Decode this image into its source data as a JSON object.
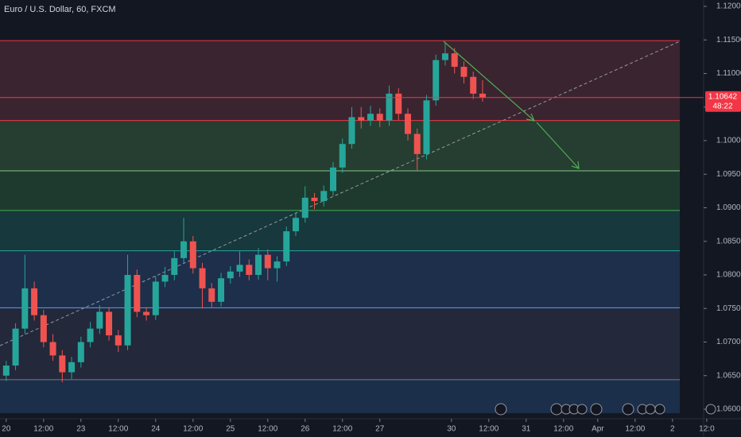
{
  "chart_data": {
    "type": "candlestick",
    "title": "Euro / U.S. Dollar, 60, FXCM",
    "x": [
      0,
      3,
      6,
      9,
      12,
      15,
      18,
      21,
      24,
      27,
      30,
      33,
      36,
      39,
      42,
      45,
      48,
      51,
      54,
      57,
      60,
      63,
      66,
      69,
      72,
      75,
      78,
      81,
      84,
      87,
      90,
      93,
      96,
      99,
      102,
      105,
      108,
      111,
      114,
      117,
      120,
      123,
      126,
      129,
      132,
      135,
      138,
      141,
      144,
      147,
      150,
      153
    ],
    "open": [
      1.065,
      1.0665,
      1.072,
      1.078,
      1.074,
      1.07,
      1.068,
      1.0655,
      1.067,
      1.07,
      1.072,
      1.0745,
      1.071,
      1.0695,
      1.08,
      1.0745,
      1.074,
      1.079,
      1.08,
      1.0825,
      1.085,
      1.081,
      1.078,
      1.076,
      1.0795,
      1.0805,
      1.0815,
      1.08,
      1.083,
      1.081,
      1.082,
      1.0865,
      1.0885,
      1.0915,
      1.091,
      1.0925,
      1.096,
      1.0995,
      1.1035,
      1.103,
      1.104,
      1.103,
      1.107,
      1.104,
      1.101,
      1.098,
      1.106,
      1.112,
      1.113,
      1.111,
      1.1095,
      1.107
    ],
    "high": [
      1.0672,
      1.0728,
      1.083,
      1.079,
      1.0748,
      1.0712,
      1.0688,
      1.0678,
      1.0708,
      1.073,
      1.0755,
      1.0752,
      1.0718,
      1.083,
      1.0808,
      1.0752,
      1.0798,
      1.0812,
      1.0835,
      1.0885,
      1.0858,
      1.0818,
      1.0788,
      1.0803,
      1.0813,
      1.0835,
      1.0823,
      1.084,
      1.0838,
      1.0828,
      1.0872,
      1.0893,
      1.0932,
      1.0922,
      1.0933,
      1.0968,
      1.1003,
      1.105,
      1.105,
      1.1052,
      1.1048,
      1.1082,
      1.1078,
      1.1048,
      1.1018,
      1.1068,
      1.1128,
      1.1145,
      1.1138,
      1.1118,
      1.1103,
      1.109
    ],
    "low": [
      1.0642,
      1.0658,
      1.0712,
      1.0732,
      1.0692,
      1.0672,
      1.064,
      1.0645,
      1.0662,
      1.0692,
      1.0712,
      1.0702,
      1.0685,
      1.0688,
      1.0737,
      1.0732,
      1.0733,
      1.0782,
      1.0792,
      1.0818,
      1.0802,
      1.075,
      1.0752,
      1.0753,
      1.0787,
      1.0797,
      1.0792,
      1.0793,
      1.0792,
      1.079,
      1.0813,
      1.0858,
      1.0878,
      1.0898,
      1.0902,
      1.0918,
      1.0952,
      1.0988,
      1.1018,
      1.1022,
      1.102,
      1.1022,
      1.103,
      1.1,
      1.0955,
      1.0972,
      1.1052,
      1.1112,
      1.11,
      1.1085,
      1.1062,
      1.1058
    ],
    "close": [
      1.0665,
      1.072,
      1.078,
      1.074,
      1.07,
      1.068,
      1.0655,
      1.067,
      1.07,
      1.072,
      1.0745,
      1.071,
      1.0695,
      1.08,
      1.0745,
      1.074,
      1.079,
      1.08,
      1.0825,
      1.085,
      1.081,
      1.078,
      1.076,
      1.0795,
      1.0805,
      1.0815,
      1.08,
      1.083,
      1.081,
      1.082,
      1.0865,
      1.0885,
      1.0915,
      1.091,
      1.0925,
      1.096,
      1.0995,
      1.1035,
      1.103,
      1.104,
      1.103,
      1.107,
      1.104,
      1.101,
      1.098,
      1.106,
      1.112,
      1.113,
      1.111,
      1.1095,
      1.107,
      1.1064
    ],
    "up_color": "#26a69a",
    "down_color": "#ef5350",
    "xlim": [
      -2,
      224
    ],
    "xticks": [
      {
        "value": 0,
        "label": "20"
      },
      {
        "value": 12,
        "label": "12:00"
      },
      {
        "value": 24,
        "label": "23"
      },
      {
        "value": 36,
        "label": "12:00"
      },
      {
        "value": 48,
        "label": "24"
      },
      {
        "value": 60,
        "label": "12:00"
      },
      {
        "value": 72,
        "label": "25"
      },
      {
        "value": 84,
        "label": "12:00"
      },
      {
        "value": 96,
        "label": "26"
      },
      {
        "value": 108,
        "label": "12:00"
      },
      {
        "value": 120,
        "label": "27"
      },
      {
        "value": 143,
        "label": "30"
      },
      {
        "value": 155,
        "label": "12:00"
      },
      {
        "value": 167,
        "label": "31"
      },
      {
        "value": 179,
        "label": "12:00"
      },
      {
        "value": 190,
        "label": "Apr"
      },
      {
        "value": 202,
        "label": "12:00"
      },
      {
        "value": 214,
        "label": "2"
      },
      {
        "value": 225,
        "label": "12:0"
      }
    ],
    "ylim": [
      1.06,
      1.12
    ],
    "yticks": [
      {
        "value": 1.06,
        "label": "1.06000"
      },
      {
        "value": 1.065,
        "label": "1.06500"
      },
      {
        "value": 1.07,
        "label": "1.07000"
      },
      {
        "value": 1.075,
        "label": "1.07500"
      },
      {
        "value": 1.08,
        "label": "1.08000"
      },
      {
        "value": 1.085,
        "label": "1.08500"
      },
      {
        "value": 1.09,
        "label": "1.09000"
      },
      {
        "value": 1.095,
        "label": "1.09500"
      },
      {
        "value": 1.1,
        "label": "1.10000"
      },
      {
        "value": 1.105,
        "label": "1.10500"
      },
      {
        "value": 1.11,
        "label": "1.11000"
      },
      {
        "value": 1.115,
        "label": "1.11500"
      },
      {
        "value": 1.12,
        "label": "1.12000"
      }
    ],
    "zones": [
      {
        "top": 1.1149,
        "bottom": 1.103,
        "color": "#3a2430",
        "line": "#f23645"
      },
      {
        "top": 1.103,
        "bottom": 1.0955,
        "color": "#263d31",
        "line": "#f23645"
      },
      {
        "top": 1.0955,
        "bottom": 1.0896,
        "color": "#1e3a2e",
        "line": "#81c784"
      },
      {
        "top": 1.0896,
        "bottom": 1.0836,
        "color": "#17383c",
        "line": "#4caf50"
      },
      {
        "top": 1.0836,
        "bottom": 1.0751,
        "color": "#1d2f4a",
        "line": "#26a69a"
      },
      {
        "top": 1.0751,
        "bottom": 1.0644,
        "color": "#23283a",
        "line": "#5b9cf6"
      },
      {
        "top": 1.0644,
        "bottom": 1.0594,
        "color": "#1b2e4a",
        "line": "#787b86"
      }
    ],
    "last_price": {
      "value": 1.10642,
      "label": "1.10642"
    },
    "countdown": "48:22",
    "price_color": "#f23645"
  }
}
